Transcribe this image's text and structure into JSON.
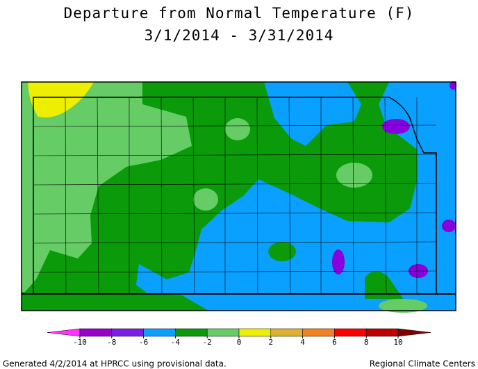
{
  "title": "Departure from Normal Temperature (F)",
  "subtitle": "3/1/2014 - 3/31/2014",
  "legend": {
    "ticks": [
      -10,
      -8,
      -6,
      -4,
      -2,
      0,
      2,
      4,
      6,
      8,
      10
    ],
    "under_color": "#ff33ff",
    "colors": [
      "#9900cc",
      "#7a1ee6",
      "#0aa0ff",
      "#0a9a0a",
      "#66cc66",
      "#eeee00",
      "#e0b030",
      "#f58020",
      "#ff0000",
      "#c00000"
    ],
    "over_color": "#800000"
  },
  "footer": {
    "left": "Generated 4/2/2014 at HPRCC using provisional data.",
    "right": "Regional Climate Centers"
  }
}
